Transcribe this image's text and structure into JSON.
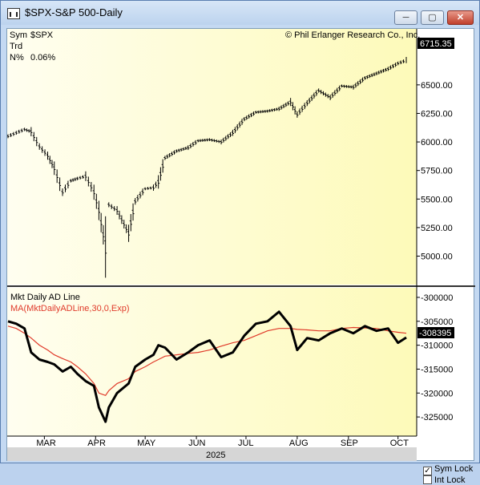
{
  "window": {
    "title": "$SPX-S&P 500-Daily",
    "min_glyph": "─",
    "max_glyph": "▢",
    "close_glyph": "✕"
  },
  "upper_panel": {
    "sym_key": "Sym",
    "sym_value": "$SPX",
    "trd_key": "Trd",
    "n_key": "N%",
    "n_value": "0.06%",
    "copyright": "© Phil Erlanger Research Co., Inc.",
    "last_value": "6715.35"
  },
  "lower_panel": {
    "title": "Mkt Daily AD Line",
    "ma_label": "MA(MktDailyADLine,30,0,Exp)",
    "last_value": "-308395",
    "ma_color": "#e03a2a",
    "line_color": "#000000"
  },
  "footer": {
    "year": "2025",
    "sym_lock": "Sym Lock",
    "int_lock": "Int Lock",
    "sym_lock_checked": true,
    "int_lock_checked": false
  },
  "colors": {
    "chart_bg_left": "#fffef0",
    "chart_bg_right": "#fdfab9",
    "price_bar": "#000000",
    "last_label_bg": "#000000",
    "ma_last_bg": "#e03a2a"
  },
  "chart_data": [
    {
      "type": "ohlc",
      "x": [
        "Feb-07",
        "Feb-12",
        "Feb-17",
        "Feb-21",
        "Feb-26",
        "Mar-03",
        "Mar-07",
        "Mar-12",
        "Mar-17",
        "Mar-21",
        "Mar-26",
        "Mar-31",
        "Apr-03",
        "Apr-07",
        "Apr-09",
        "Apr-14",
        "Apr-21",
        "Apr-25",
        "May-01",
        "May-06",
        "May-09",
        "May-13",
        "May-20",
        "May-27",
        "Jun-02",
        "Jun-09",
        "Jun-16",
        "Jun-23",
        "Jun-30",
        "Jul-07",
        "Jul-14",
        "Jul-21",
        "Jul-28",
        "Aug-01",
        "Aug-07",
        "Aug-14",
        "Aug-21",
        "Aug-28",
        "Sep-04",
        "Sep-11",
        "Sep-18",
        "Sep-25",
        "Oct-01",
        "Oct-06"
      ],
      "series": [
        {
          "values": [
            6050,
            6080,
            6110,
            6090,
            5960,
            5880,
            5770,
            5560,
            5660,
            5680,
            5700,
            5560,
            5400,
            5080,
            5450,
            5400,
            5200,
            5480,
            5590,
            5600,
            5650,
            5860,
            5920,
            5950,
            6010,
            6020,
            6000,
            6080,
            6200,
            6260,
            6270,
            6290,
            6350,
            6240,
            6340,
            6450,
            6390,
            6490,
            6480,
            6560,
            6600,
            6640,
            6688,
            6715
          ]
        }
      ],
      "ylim": [
        4800,
        6850
      ],
      "yticks": [
        5000,
        5250,
        5500,
        5750,
        6000,
        6250,
        6500
      ],
      "ytick_labels": [
        "5000.00",
        "5250.00",
        "5500.00",
        "5750.00",
        "6000.00",
        "6250.00",
        "6500.00"
      ],
      "last_value": 6715.35
    },
    {
      "type": "line",
      "x": [
        "Feb-07",
        "Feb-12",
        "Feb-17",
        "Feb-21",
        "Feb-26",
        "Mar-03",
        "Mar-07",
        "Mar-12",
        "Mar-17",
        "Mar-21",
        "Mar-26",
        "Mar-31",
        "Apr-03",
        "Apr-07",
        "Apr-09",
        "Apr-14",
        "Apr-21",
        "Apr-25",
        "May-01",
        "May-06",
        "May-09",
        "May-13",
        "May-20",
        "May-27",
        "Jun-02",
        "Jun-09",
        "Jun-16",
        "Jun-23",
        "Jun-30",
        "Jul-07",
        "Jul-14",
        "Jul-21",
        "Jul-28",
        "Aug-01",
        "Aug-07",
        "Aug-14",
        "Aug-21",
        "Aug-28",
        "Sep-04",
        "Sep-11",
        "Sep-18",
        "Sep-25",
        "Oct-01",
        "Oct-06"
      ],
      "series": [
        {
          "values": [
            -305000,
            -305500,
            -306500,
            -311500,
            -313000,
            -313500,
            -314000,
            -315500,
            -314500,
            -316000,
            -317500,
            -318500,
            -323000,
            -326000,
            -323000,
            -320000,
            -318000,
            -314500,
            -313000,
            -312000,
            -310000,
            -310500,
            -313000,
            -311500,
            -310000,
            -309000,
            -312500,
            -311500,
            -308000,
            -305500,
            -305000,
            -303000,
            -306000,
            -311000,
            -308500,
            -309000,
            -307500,
            -306500,
            -307500,
            -306000,
            -307000,
            -306500,
            -309500,
            -308395
          ]
        },
        {
          "values": [
            -306000,
            -306500,
            -307500,
            -308500,
            -310000,
            -311000,
            -312000,
            -312800,
            -313500,
            -314500,
            -316000,
            -318000,
            -320000,
            -320500,
            -319500,
            -318000,
            -317000,
            -315500,
            -314500,
            -313500,
            -313000,
            -312300,
            -312000,
            -311700,
            -311500,
            -311000,
            -310200,
            -309500,
            -309000,
            -308000,
            -307000,
            -306500,
            -306500,
            -306700,
            -306800,
            -307000,
            -307000,
            -306500,
            -306300,
            -306400,
            -306500,
            -307000,
            -307300,
            -307500
          ]
        }
      ],
      "ylim": [
        -328500,
        -298500
      ],
      "yticks": [
        -300000,
        -305000,
        -310000,
        -315000,
        -320000,
        -325000
      ],
      "ytick_labels": [
        "-300000",
        "-305000",
        "-310000",
        "-315000",
        "-320000",
        "-325000"
      ],
      "last_value": -308395
    }
  ],
  "x_axis": {
    "month_labels": [
      "MAR",
      "APR",
      "MAY",
      "JUN",
      "JUL",
      "AUG",
      "SEP",
      "OCT"
    ],
    "month_dates": [
      "Mar-01",
      "Apr-01",
      "May-01",
      "Jun-01",
      "Jul-01",
      "Aug-01",
      "Sep-01",
      "Oct-01"
    ],
    "year_label": "2025"
  }
}
